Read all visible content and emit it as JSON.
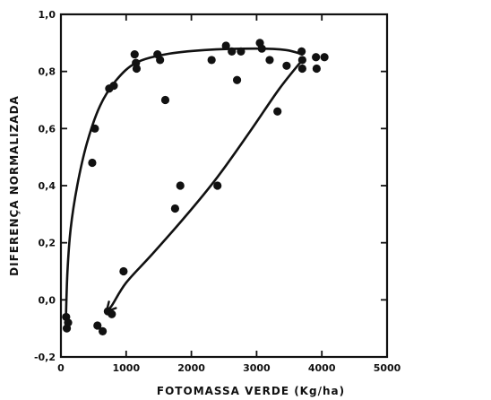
{
  "chart_data": {
    "type": "scatter",
    "xlabel": "FOTOMASSA VERDE (Kg/ha)",
    "ylabel": "DIFERENÇA NORMALIZADA",
    "xlim": [
      0,
      5000
    ],
    "ylim": [
      -0.2,
      1.0
    ],
    "xticks": [
      0,
      1000,
      2000,
      3000,
      4000,
      5000
    ],
    "xtick_labels": [
      "0",
      "1000",
      "2000",
      "3000",
      "4000",
      "5000"
    ],
    "yticks": [
      -0.2,
      0.0,
      0.2,
      0.4,
      0.6,
      0.8,
      1.0
    ],
    "ytick_labels": [
      "-0,2",
      "0,0",
      "0,2",
      "0,4",
      "0,6",
      "0,8",
      "1,0"
    ],
    "grid": false,
    "points": [
      {
        "x": 80,
        "y": -0.06
      },
      {
        "x": 90,
        "y": -0.1
      },
      {
        "x": 110,
        "y": -0.08
      },
      {
        "x": 480,
        "y": 0.48
      },
      {
        "x": 520,
        "y": 0.6
      },
      {
        "x": 560,
        "y": -0.09
      },
      {
        "x": 640,
        "y": -0.11
      },
      {
        "x": 720,
        "y": -0.04
      },
      {
        "x": 780,
        "y": -0.05
      },
      {
        "x": 740,
        "y": 0.74
      },
      {
        "x": 810,
        "y": 0.75
      },
      {
        "x": 960,
        "y": 0.1
      },
      {
        "x": 1130,
        "y": 0.86
      },
      {
        "x": 1150,
        "y": 0.83
      },
      {
        "x": 1160,
        "y": 0.81
      },
      {
        "x": 1480,
        "y": 0.86
      },
      {
        "x": 1520,
        "y": 0.84
      },
      {
        "x": 1600,
        "y": 0.7
      },
      {
        "x": 1750,
        "y": 0.32
      },
      {
        "x": 1830,
        "y": 0.4
      },
      {
        "x": 2310,
        "y": 0.84
      },
      {
        "x": 2400,
        "y": 0.4
      },
      {
        "x": 2530,
        "y": 0.89
      },
      {
        "x": 2620,
        "y": 0.87
      },
      {
        "x": 2700,
        "y": 0.77
      },
      {
        "x": 2760,
        "y": 0.87
      },
      {
        "x": 3050,
        "y": 0.9
      },
      {
        "x": 3080,
        "y": 0.88
      },
      {
        "x": 3200,
        "y": 0.84
      },
      {
        "x": 3320,
        "y": 0.66
      },
      {
        "x": 3460,
        "y": 0.82
      },
      {
        "x": 3690,
        "y": 0.87
      },
      {
        "x": 3700,
        "y": 0.84
      },
      {
        "x": 3700,
        "y": 0.81
      },
      {
        "x": 3910,
        "y": 0.85
      },
      {
        "x": 3920,
        "y": 0.81
      },
      {
        "x": 4040,
        "y": 0.85
      }
    ],
    "curves": [
      {
        "points": [
          [
            75,
            -0.07
          ],
          [
            100,
            0.1
          ],
          [
            150,
            0.25
          ],
          [
            250,
            0.4
          ],
          [
            400,
            0.55
          ],
          [
            600,
            0.68
          ],
          [
            850,
            0.77
          ],
          [
            1150,
            0.83
          ],
          [
            1600,
            0.86
          ],
          [
            2200,
            0.875
          ],
          [
            3000,
            0.88
          ],
          [
            3450,
            0.875
          ],
          [
            3700,
            0.86
          ]
        ],
        "arrow": false
      },
      {
        "points": [
          [
            3700,
            0.84
          ],
          [
            3350,
            0.74
          ],
          [
            2900,
            0.59
          ],
          [
            2400,
            0.43
          ],
          [
            1900,
            0.29
          ],
          [
            1400,
            0.16
          ],
          [
            1000,
            0.06
          ],
          [
            780,
            -0.02
          ],
          [
            700,
            -0.04
          ]
        ],
        "arrow": true
      }
    ]
  }
}
